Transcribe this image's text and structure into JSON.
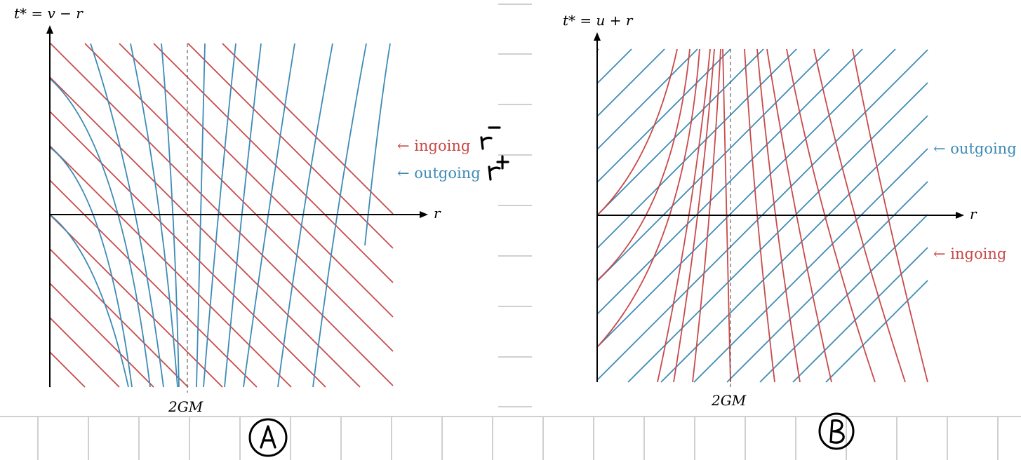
{
  "colors": {
    "ingoing": "#c84a4a",
    "outgoing": "#3e8bb5",
    "axis": "#000000",
    "grid": "#d0d0d0"
  },
  "panel_a": {
    "time_label": "t* = v − r",
    "r_label": "r",
    "horizon_label": "2GM",
    "ingoing_label": "← ingoing",
    "outgoing_label": "← outgoing",
    "handwritten_note_ingoing": "r⁻",
    "handwritten_note_outgoing": "r⁺",
    "handwritten_mark": "A"
  },
  "panel_b": {
    "time_label": "t* = u + r",
    "r_label": "r",
    "horizon_label": "2GM",
    "outgoing_label": "← outgoing",
    "ingoing_label": "← ingoing",
    "handwritten_mark": "B"
  }
}
